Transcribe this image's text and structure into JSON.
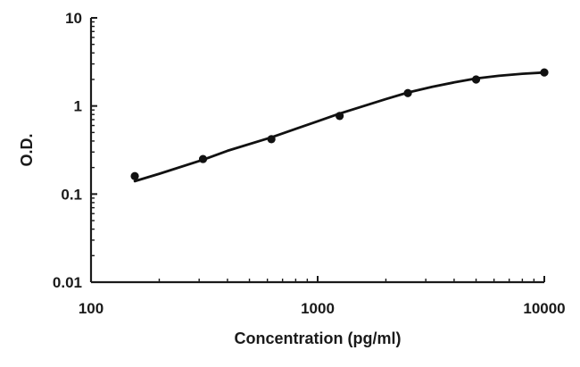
{
  "chart_data": {
    "type": "scatter",
    "title": "",
    "xlabel": "Concentration (pg/ml)",
    "ylabel": "O.D.",
    "x_scale": "log",
    "y_scale": "log",
    "xlim": [
      100,
      10000
    ],
    "ylim": [
      0.01,
      10
    ],
    "x_ticks": [
      {
        "value": 100,
        "label": "100"
      },
      {
        "value": 1000,
        "label": "1000"
      },
      {
        "value": 10000,
        "label": "10000"
      }
    ],
    "y_ticks": [
      {
        "value": 10,
        "label": "10"
      },
      {
        "value": 1,
        "label": "1"
      },
      {
        "value": 0.1,
        "label": "0.1"
      },
      {
        "value": 0.01,
        "label": "0.01"
      }
    ],
    "grid": false,
    "legend": "none",
    "series": [
      {
        "points": [
          {
            "x": 156,
            "y": 0.16
          },
          {
            "x": 312,
            "y": 0.25
          },
          {
            "x": 625,
            "y": 0.42
          },
          {
            "x": 1250,
            "y": 0.77
          },
          {
            "x": 2500,
            "y": 1.4
          },
          {
            "x": 5000,
            "y": 2.0
          },
          {
            "x": 10000,
            "y": 2.4
          }
        ],
        "fit_curve": {
          "x": [
            156,
            200,
            312,
            400,
            625,
            800,
            1000,
            1250,
            1600,
            2000,
            2500,
            3200,
            4000,
            5000,
            6300,
            8000,
            10000
          ],
          "y": [
            0.14,
            0.17,
            0.245,
            0.31,
            0.44,
            0.55,
            0.67,
            0.82,
            1.0,
            1.2,
            1.42,
            1.65,
            1.85,
            2.05,
            2.2,
            2.32,
            2.4
          ]
        }
      }
    ],
    "colors": {
      "axis": "#1a1a1a",
      "marker": "#111111",
      "curve": "#111111"
    }
  }
}
